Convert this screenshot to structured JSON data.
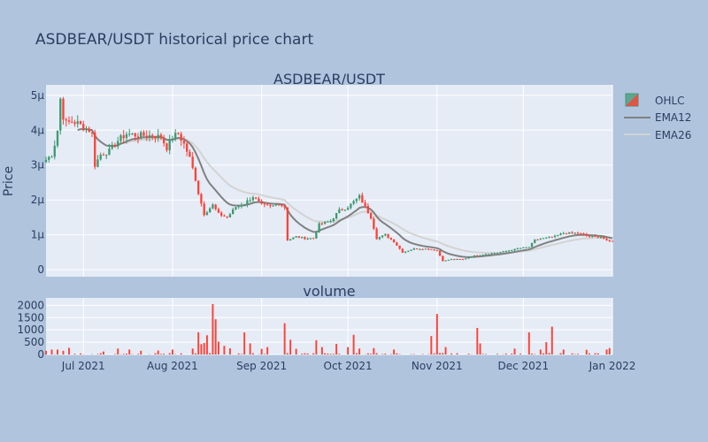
{
  "figure": {
    "title": "ASDBEAR/USDT historical price chart",
    "colors": {
      "background": "#b0c4de",
      "plot_bg": "#e5ecf6",
      "grid": "#ffffff",
      "text": "#2a3f5f",
      "up": "#3d9970",
      "down": "#ff4136",
      "ema12": "#808080",
      "ema26": "#d3d3d3"
    }
  },
  "chart_data": [
    {
      "type": "candlestick",
      "title": "ASDBEAR/USDT",
      "ylabel": "Price",
      "ylim": [
        -2e-07,
        5.3e-06
      ],
      "y_ticks": [
        {
          "value": 0,
          "label": "0"
        },
        {
          "value": 1e-06,
          "label": "1μ"
        },
        {
          "value": 2e-06,
          "label": "2μ"
        },
        {
          "value": 3e-06,
          "label": "3μ"
        },
        {
          "value": 4e-06,
          "label": "4μ"
        },
        {
          "value": 5e-06,
          "label": "5μ"
        }
      ],
      "xlim": [
        "2021-06-18",
        "2022-01-01"
      ],
      "grid": true,
      "legend_position": "top-right",
      "series_names": [
        "OHLC",
        "EMA12",
        "EMA26"
      ],
      "price_keypoints": [
        [
          "2021-06-18",
          3.15e-06
        ],
        [
          "2021-06-20",
          3.3e-06
        ],
        [
          "2021-06-21",
          3.6e-06
        ],
        [
          "2021-06-22",
          4e-06
        ],
        [
          "2021-06-23",
          4.9e-06
        ],
        [
          "2021-06-24",
          4.4e-06
        ],
        [
          "2021-06-25",
          4.2e-06
        ],
        [
          "2021-06-27",
          4.25e-06
        ],
        [
          "2021-06-29",
          4.2e-06
        ],
        [
          "2021-07-01",
          4.1e-06
        ],
        [
          "2021-07-03",
          4e-06
        ],
        [
          "2021-07-04",
          3.9e-06
        ],
        [
          "2021-07-05",
          3e-06
        ],
        [
          "2021-07-07",
          3.3e-06
        ],
        [
          "2021-07-10",
          3.4e-06
        ],
        [
          "2021-07-13",
          3.7e-06
        ],
        [
          "2021-07-16",
          3.9e-06
        ],
        [
          "2021-07-20",
          3.85e-06
        ],
        [
          "2021-07-25",
          3.85e-06
        ],
        [
          "2021-07-28",
          3.8e-06
        ],
        [
          "2021-07-30",
          3.5e-06
        ],
        [
          "2021-08-01",
          3.8e-06
        ],
        [
          "2021-08-03",
          3.9e-06
        ],
        [
          "2021-08-05",
          3.6e-06
        ],
        [
          "2021-08-07",
          3.2e-06
        ],
        [
          "2021-08-09",
          2.6e-06
        ],
        [
          "2021-08-10",
          2.2e-06
        ],
        [
          "2021-08-12",
          1.6e-06
        ],
        [
          "2021-08-15",
          1.85e-06
        ],
        [
          "2021-08-17",
          1.6e-06
        ],
        [
          "2021-08-20",
          1.5e-06
        ],
        [
          "2021-08-23",
          1.8e-06
        ],
        [
          "2021-08-26",
          1.9e-06
        ],
        [
          "2021-08-29",
          2.1e-06
        ],
        [
          "2021-09-01",
          1.85e-06
        ],
        [
          "2021-09-04",
          1.8e-06
        ],
        [
          "2021-09-07",
          1.9e-06
        ],
        [
          "2021-09-09",
          1.8e-06
        ],
        [
          "2021-09-10",
          8.5e-07
        ],
        [
          "2021-09-13",
          9.5e-07
        ],
        [
          "2021-09-16",
          9e-07
        ],
        [
          "2021-09-19",
          9e-07
        ],
        [
          "2021-09-21",
          1.3e-06
        ],
        [
          "2021-09-25",
          1.4e-06
        ],
        [
          "2021-09-28",
          1.7e-06
        ],
        [
          "2021-10-01",
          1.8e-06
        ],
        [
          "2021-10-05",
          2.1e-06
        ],
        [
          "2021-10-07",
          1.8e-06
        ],
        [
          "2021-10-09",
          1.5e-06
        ],
        [
          "2021-10-11",
          9e-07
        ],
        [
          "2021-10-14",
          1e-06
        ],
        [
          "2021-10-17",
          8e-07
        ],
        [
          "2021-10-20",
          5e-07
        ],
        [
          "2021-10-24",
          6e-07
        ],
        [
          "2021-10-29",
          6e-07
        ],
        [
          "2021-11-01",
          5.5e-07
        ],
        [
          "2021-11-03",
          2.5e-07
        ],
        [
          "2021-11-06",
          3e-07
        ],
        [
          "2021-11-10",
          3e-07
        ],
        [
          "2021-11-14",
          4e-07
        ],
        [
          "2021-11-18",
          4.5e-07
        ],
        [
          "2021-11-23",
          5e-07
        ],
        [
          "2021-11-26",
          5.5e-07
        ],
        [
          "2021-11-30",
          6.2e-07
        ],
        [
          "2021-12-03",
          6.5e-07
        ],
        [
          "2021-12-05",
          8.5e-07
        ],
        [
          "2021-12-08",
          9e-07
        ],
        [
          "2021-12-12",
          9.5e-07
        ],
        [
          "2021-12-15",
          1.05e-06
        ],
        [
          "2021-12-20",
          1.05e-06
        ],
        [
          "2021-12-24",
          9.5e-07
        ],
        [
          "2021-12-28",
          9.5e-07
        ],
        [
          "2021-12-30",
          8.2e-07
        ],
        [
          "2022-01-01",
          8.2e-07
        ]
      ]
    },
    {
      "type": "bar",
      "title": "volume",
      "ylim": [
        0,
        2300
      ],
      "y_ticks": [
        {
          "value": 0,
          "label": "0"
        },
        {
          "value": 500,
          "label": "500"
        },
        {
          "value": 1000,
          "label": "1000"
        },
        {
          "value": 1500,
          "label": "1500"
        },
        {
          "value": 2000,
          "label": "2000"
        }
      ],
      "xlim": [
        "2021-06-18",
        "2022-01-01"
      ],
      "x_ticks": [
        {
          "date": "2021-07-01",
          "label": "Jul 2021"
        },
        {
          "date": "2021-08-01",
          "label": "Aug 2021"
        },
        {
          "date": "2021-09-01",
          "label": "Sep 2021"
        },
        {
          "date": "2021-10-01",
          "label": "Oct 2021"
        },
        {
          "date": "2021-11-01",
          "label": "Nov 2021"
        },
        {
          "date": "2021-12-01",
          "label": "Dec 2021"
        },
        {
          "date": "2022-01-01",
          "label": "Jan 2022"
        }
      ],
      "volume_baseline": 60,
      "volume_spikes": [
        [
          "2021-06-18",
          150
        ],
        [
          "2021-06-20",
          200
        ],
        [
          "2021-06-22",
          200
        ],
        [
          "2021-06-24",
          150
        ],
        [
          "2021-06-26",
          270
        ],
        [
          "2021-07-08",
          120
        ],
        [
          "2021-07-13",
          240
        ],
        [
          "2021-07-17",
          200
        ],
        [
          "2021-07-21",
          150
        ],
        [
          "2021-07-27",
          160
        ],
        [
          "2021-08-01",
          200
        ],
        [
          "2021-08-08",
          240
        ],
        [
          "2021-08-10",
          900
        ],
        [
          "2021-08-11",
          420
        ],
        [
          "2021-08-12",
          470
        ],
        [
          "2021-08-13",
          780
        ],
        [
          "2021-08-15",
          2050
        ],
        [
          "2021-08-16",
          1430
        ],
        [
          "2021-08-17",
          520
        ],
        [
          "2021-08-19",
          350
        ],
        [
          "2021-08-21",
          250
        ],
        [
          "2021-08-26",
          900
        ],
        [
          "2021-08-28",
          450
        ],
        [
          "2021-09-01",
          230
        ],
        [
          "2021-09-03",
          300
        ],
        [
          "2021-09-09",
          1270
        ],
        [
          "2021-09-11",
          600
        ],
        [
          "2021-09-13",
          230
        ],
        [
          "2021-09-20",
          580
        ],
        [
          "2021-09-22",
          300
        ],
        [
          "2021-09-27",
          430
        ],
        [
          "2021-10-01",
          300
        ],
        [
          "2021-10-03",
          800
        ],
        [
          "2021-10-05",
          240
        ],
        [
          "2021-10-10",
          260
        ],
        [
          "2021-10-17",
          200
        ],
        [
          "2021-10-30",
          750
        ],
        [
          "2021-11-01",
          1650
        ],
        [
          "2021-11-04",
          300
        ],
        [
          "2021-11-15",
          1080
        ],
        [
          "2021-11-16",
          450
        ],
        [
          "2021-11-28",
          240
        ],
        [
          "2021-12-03",
          900
        ],
        [
          "2021-12-07",
          200
        ],
        [
          "2021-12-09",
          500
        ],
        [
          "2021-12-11",
          1130
        ],
        [
          "2021-12-15",
          200
        ],
        [
          "2021-12-23",
          190
        ],
        [
          "2021-12-30",
          200
        ],
        [
          "2021-12-31",
          260
        ]
      ]
    }
  ]
}
